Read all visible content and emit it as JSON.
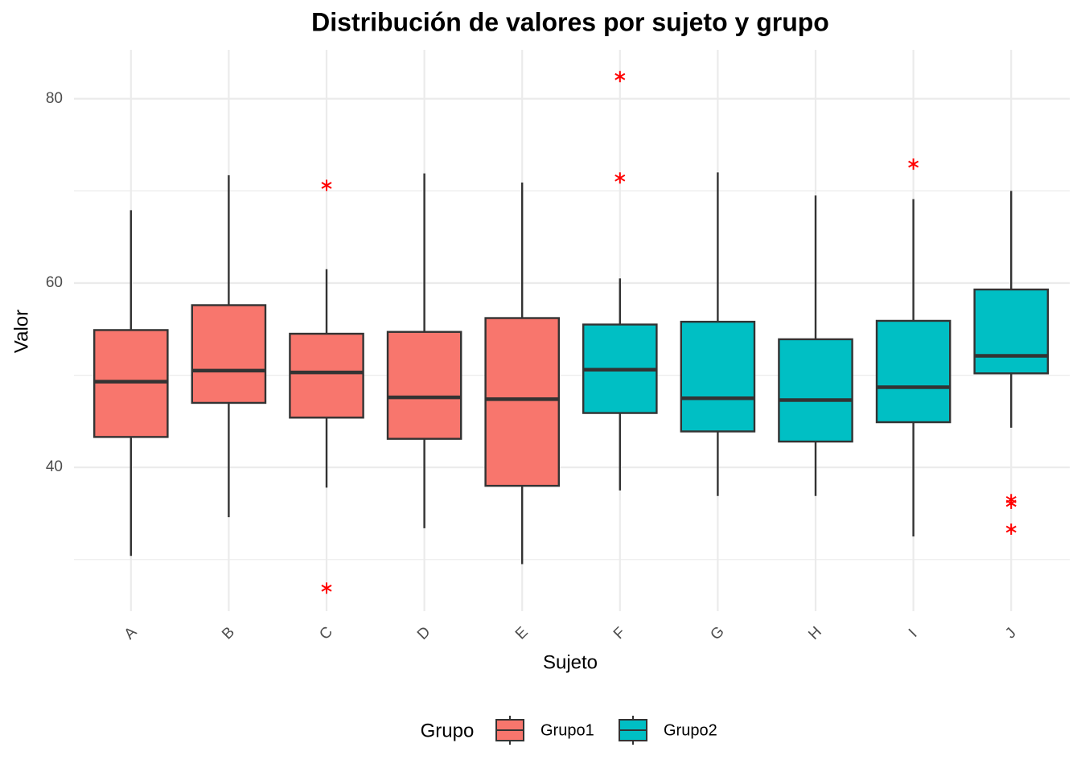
{
  "chart_data": {
    "type": "boxplot",
    "title": "Distribución de valores por sujeto y grupo",
    "x_label": "Sujeto",
    "y_label": "Valor",
    "legend_title": "Grupo",
    "legend_position": "bottom",
    "categories": [
      "A",
      "B",
      "C",
      "D",
      "E",
      "F",
      "G",
      "H",
      "I",
      "J"
    ],
    "groups": [
      {
        "name": "Grupo1",
        "color": "#F8766D"
      },
      {
        "name": "Grupo2",
        "color": "#00BFC4"
      }
    ],
    "boxes": [
      {
        "group": 0,
        "min": 30.4,
        "q1": 43.3,
        "median": 49.3,
        "q3": 54.9,
        "max": 67.9,
        "outliers": []
      },
      {
        "group": 0,
        "min": 34.6,
        "q1": 47.0,
        "median": 50.5,
        "q3": 57.6,
        "max": 71.7,
        "outliers": []
      },
      {
        "group": 0,
        "min": 37.8,
        "q1": 45.4,
        "median": 50.3,
        "q3": 54.5,
        "max": 61.5,
        "outliers": [
          70.6,
          26.9
        ]
      },
      {
        "group": 0,
        "min": 33.4,
        "q1": 43.1,
        "median": 47.6,
        "q3": 54.7,
        "max": 71.9,
        "outliers": []
      },
      {
        "group": 0,
        "min": 29.5,
        "q1": 38.0,
        "median": 47.4,
        "q3": 56.2,
        "max": 70.9,
        "outliers": []
      },
      {
        "group": 1,
        "min": 37.5,
        "q1": 45.9,
        "median": 50.6,
        "q3": 55.5,
        "max": 60.5,
        "outliers": [
          82.4,
          71.4
        ]
      },
      {
        "group": 1,
        "min": 36.9,
        "q1": 43.9,
        "median": 47.5,
        "q3": 55.8,
        "max": 72.0,
        "outliers": []
      },
      {
        "group": 1,
        "min": 36.9,
        "q1": 42.8,
        "median": 47.3,
        "q3": 53.9,
        "max": 69.5,
        "outliers": []
      },
      {
        "group": 1,
        "min": 32.5,
        "q1": 44.9,
        "median": 48.7,
        "q3": 55.9,
        "max": 69.1,
        "outliers": [
          72.9
        ]
      },
      {
        "group": 1,
        "min": 44.3,
        "q1": 50.2,
        "median": 52.1,
        "q3": 59.3,
        "max": 70.0,
        "outliers": [
          36.5,
          36.1,
          33.3
        ]
      }
    ],
    "outlier_color": "#FF0000",
    "ylim": [
      24.4,
      85.3
    ],
    "yticks": [
      40,
      60,
      80
    ],
    "minor_yticks": [
      30,
      50,
      70
    ],
    "grid": true
  }
}
